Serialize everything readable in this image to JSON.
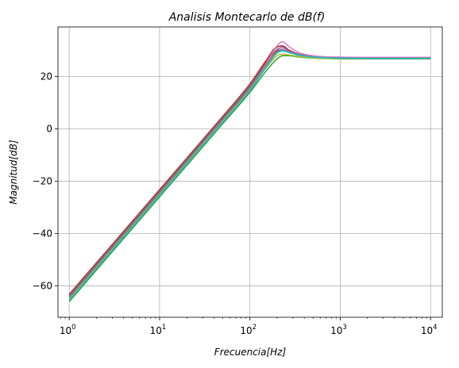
{
  "chart_data": {
    "type": "line",
    "title": "Analisis Montecarlo de dB(f)",
    "xlabel": "Frecuencia[Hz]",
    "ylabel": "Magnitud[dB]",
    "xscale": "log",
    "xlim": [
      0.75,
      13500
    ],
    "ylim": [
      -72,
      39
    ],
    "xticks": [
      1,
      10,
      100,
      1000,
      10000
    ],
    "xtick_labels": [
      {
        "base": "10",
        "exp": "0"
      },
      {
        "base": "10",
        "exp": "1"
      },
      {
        "base": "10",
        "exp": "2"
      },
      {
        "base": "10",
        "exp": "3"
      },
      {
        "base": "10",
        "exp": "4"
      }
    ],
    "yticks": [
      -60,
      -40,
      -20,
      0,
      20
    ],
    "ytick_labels": [
      "−60",
      "−40",
      "−20",
      "0",
      "20"
    ],
    "grid": true,
    "x": [
      1,
      10,
      50,
      100,
      150,
      200,
      230,
      270,
      350,
      500,
      700,
      1000,
      2000,
      5000,
      10000
    ],
    "series": [
      {
        "color": "#1f77b4",
        "values": [
          -63.8,
          -23.8,
          4.2,
          16.6,
          25.8,
          31.3,
          31.8,
          30.2,
          28.6,
          27.8,
          27.5,
          27.4,
          27.3,
          27.3,
          27.3
        ]
      },
      {
        "color": "#ff7f0e",
        "values": [
          -63.3,
          -23.3,
          4.7,
          17.0,
          25.5,
          29.6,
          30.0,
          29.3,
          28.2,
          27.6,
          27.3,
          27.2,
          27.1,
          27.1,
          27.1
        ]
      },
      {
        "color": "#2ca02c",
        "values": [
          -66.0,
          -26.0,
          2.0,
          14.0,
          22.0,
          26.8,
          28.0,
          28.0,
          27.5,
          27.1,
          26.9,
          26.8,
          26.8,
          26.8,
          26.8
        ]
      },
      {
        "color": "#d62728",
        "values": [
          -63.2,
          -23.2,
          4.8,
          17.2,
          26.0,
          31.4,
          31.6,
          30.1,
          28.5,
          27.7,
          27.4,
          27.3,
          27.2,
          27.2,
          27.2
        ]
      },
      {
        "color": "#9467bd",
        "values": [
          -64.2,
          -24.2,
          3.8,
          16.0,
          24.8,
          30.4,
          31.0,
          29.8,
          28.4,
          27.6,
          27.3,
          27.2,
          27.1,
          27.1,
          27.1
        ]
      },
      {
        "color": "#8c564b",
        "values": [
          -63.5,
          -23.5,
          4.5,
          16.8,
          25.3,
          30.0,
          30.3,
          29.4,
          28.2,
          27.6,
          27.3,
          27.2,
          27.1,
          27.1,
          27.1
        ]
      },
      {
        "color": "#e377c2",
        "values": [
          -64.8,
          -24.8,
          3.2,
          15.6,
          24.6,
          31.8,
          33.4,
          31.5,
          29.2,
          28.0,
          27.6,
          27.5,
          27.4,
          27.4,
          27.4
        ]
      },
      {
        "color": "#7f7f7f",
        "values": [
          -64.6,
          -24.6,
          3.4,
          15.6,
          24.2,
          29.4,
          30.2,
          29.5,
          28.3,
          27.6,
          27.3,
          27.2,
          27.1,
          27.1,
          27.1
        ]
      },
      {
        "color": "#bcbd22",
        "values": [
          -65.2,
          -25.2,
          2.8,
          14.9,
          23.2,
          28.0,
          28.6,
          28.3,
          27.7,
          27.2,
          27.0,
          26.9,
          26.9,
          26.9,
          26.9
        ]
      },
      {
        "color": "#17becf",
        "values": [
          -65.5,
          -25.5,
          2.5,
          14.6,
          23.4,
          29.0,
          29.8,
          29.2,
          28.2,
          27.5,
          27.2,
          27.1,
          27.0,
          27.0,
          27.0
        ]
      }
    ]
  }
}
